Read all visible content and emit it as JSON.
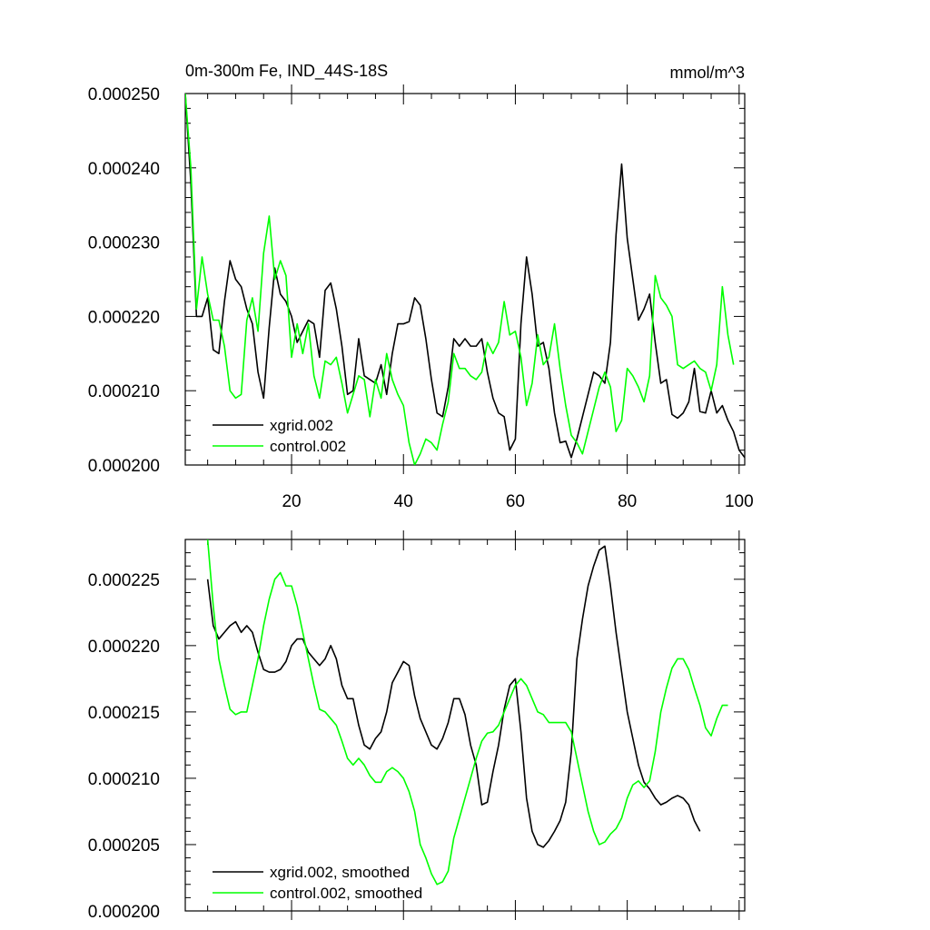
{
  "chart_data": [
    {
      "type": "line",
      "title": "0m-300m Fe, IND_44S-18S",
      "units": "mmol/m^3",
      "xlim": [
        1,
        101
      ],
      "ylim": [
        0.0002,
        0.00025
      ],
      "x_ticks": [
        20,
        40,
        60,
        80,
        100
      ],
      "x_tick_labels": [
        "20",
        "40",
        "60",
        "80",
        "100"
      ],
      "y_ticks": [
        0.0002,
        0.00021,
        0.00022,
        0.00023,
        0.00024,
        0.00025
      ],
      "y_tick_labels": [
        "0.000200",
        "0.000210",
        "0.000220",
        "0.000230",
        "0.000240",
        "0.000250"
      ],
      "legend_position": "bottom-left",
      "series": [
        {
          "name": "xgrid.002",
          "color": "#000000",
          "x_start": 1,
          "values": [
            0.00025,
            0.000238,
            0.00022,
            0.00022,
            0.0002225,
            0.0002155,
            0.000215,
            0.000222,
            0.0002275,
            0.000225,
            0.000224,
            0.000221,
            0.000219,
            0.0002125,
            0.000209,
            0.0002185,
            0.0002265,
            0.000223,
            0.000222,
            0.00022,
            0.0002165,
            0.000218,
            0.0002195,
            0.000219,
            0.0002145,
            0.0002235,
            0.0002245,
            0.000221,
            0.000216,
            0.0002095,
            0.00021,
            0.000217,
            0.000212,
            0.0002115,
            0.000211,
            0.0002135,
            0.0002095,
            0.000215,
            0.000219,
            0.000219,
            0.0002193,
            0.0002225,
            0.0002215,
            0.000217,
            0.0002115,
            0.000207,
            0.0002065,
            0.0002105,
            0.000217,
            0.000216,
            0.000217,
            0.000216,
            0.000216,
            0.000217,
            0.0002125,
            0.000209,
            0.000207,
            0.0002065,
            0.000202,
            0.0002035,
            0.000219,
            0.000228,
            0.000223,
            0.000216,
            0.0002165,
            0.000213,
            0.000207,
            0.000203,
            0.0002032,
            0.000201,
            0.0002035,
            0.0002065,
            0.0002095,
            0.0002125,
            0.000212,
            0.000211,
            0.0002165,
            0.000231,
            0.0002405,
            0.0002305,
            0.000225,
            0.0002195,
            0.000221,
            0.000223,
            0.0002165,
            0.000211,
            0.0002115,
            0.0002068,
            0.0002063,
            0.000207,
            0.0002085,
            0.000213,
            0.0002072,
            0.000207,
            0.00021,
            0.000207,
            0.000208,
            0.000206,
            0.0002045,
            0.000202,
            0.000201
          ]
        },
        {
          "name": "control.002",
          "color": "#00ff00",
          "x_start": 1,
          "values": [
            0.00025,
            0.00024,
            0.000221,
            0.000228,
            0.000223,
            0.0002195,
            0.0002195,
            0.000216,
            0.00021,
            0.000209,
            0.0002095,
            0.0002195,
            0.0002225,
            0.000218,
            0.0002285,
            0.0002335,
            0.000225,
            0.0002275,
            0.0002255,
            0.0002145,
            0.000219,
            0.000215,
            0.000219,
            0.000212,
            0.000209,
            0.000214,
            0.0002135,
            0.0002145,
            0.000211,
            0.000207,
            0.0002095,
            0.000212,
            0.0002115,
            0.0002065,
            0.0002115,
            0.000209,
            0.000215,
            0.0002115,
            0.0002095,
            0.000208,
            0.000203,
            0.0002,
            0.0002015,
            0.0002035,
            0.000203,
            0.000202,
            0.0002055,
            0.0002085,
            0.000215,
            0.000213,
            0.000213,
            0.000212,
            0.0002115,
            0.0002125,
            0.0002165,
            0.000215,
            0.0002165,
            0.000222,
            0.0002175,
            0.000218,
            0.0002145,
            0.000208,
            0.000211,
            0.0002175,
            0.0002135,
            0.0002145,
            0.000219,
            0.000213,
            0.000208,
            0.000204,
            0.000203,
            0.0002015,
            0.0002045,
            0.0002075,
            0.0002105,
            0.0002125,
            0.0002105,
            0.0002045,
            0.000206,
            0.000213,
            0.000212,
            0.0002105,
            0.0002085,
            0.000212,
            0.0002255,
            0.0002225,
            0.0002215,
            0.00022,
            0.0002135,
            0.000213,
            0.0002135,
            0.000214,
            0.000213,
            0.0002125,
            0.00021,
            0.0002135,
            0.000224,
            0.0002175,
            0.0002135
          ]
        }
      ]
    },
    {
      "type": "line",
      "title": "",
      "xlim": [
        1,
        101
      ],
      "ylim": [
        0.0002,
        0.000228
      ],
      "x_ticks": [
        20,
        40,
        60,
        80,
        100
      ],
      "x_tick_labels": [
        "",
        "",
        "",
        "",
        ""
      ],
      "y_ticks": [
        0.0002,
        0.000205,
        0.00021,
        0.000215,
        0.00022,
        0.000225
      ],
      "y_tick_labels": [
        "0.000200",
        "0.000205",
        "0.000210",
        "0.000215",
        "0.000220",
        "0.000225"
      ],
      "legend_position": "bottom-left",
      "series": [
        {
          "name": "xgrid.002, smoothed",
          "color": "#000000",
          "x_start": 5,
          "values": [
            0.000225,
            0.0002215,
            0.0002205,
            0.000221,
            0.0002215,
            0.0002218,
            0.000221,
            0.0002215,
            0.000221,
            0.0002195,
            0.0002182,
            0.000218,
            0.000218,
            0.0002182,
            0.0002188,
            0.00022,
            0.0002205,
            0.0002205,
            0.0002195,
            0.000219,
            0.0002185,
            0.000219,
            0.00022,
            0.000219,
            0.000217,
            0.000216,
            0.000216,
            0.000214,
            0.0002125,
            0.0002122,
            0.000213,
            0.0002135,
            0.000215,
            0.0002172,
            0.000218,
            0.0002188,
            0.0002185,
            0.0002162,
            0.0002145,
            0.0002135,
            0.0002125,
            0.0002122,
            0.000213,
            0.0002142,
            0.000216,
            0.000216,
            0.0002148,
            0.0002125,
            0.000211,
            0.000208,
            0.0002082,
            0.0002105,
            0.0002125,
            0.0002152,
            0.000217,
            0.0002175,
            0.0002135,
            0.0002085,
            0.000206,
            0.000205,
            0.0002048,
            0.0002053,
            0.000206,
            0.0002068,
            0.0002082,
            0.000212,
            0.000219,
            0.000222,
            0.0002245,
            0.000226,
            0.0002272,
            0.0002275,
            0.0002245,
            0.000221,
            0.000218,
            0.000215,
            0.000213,
            0.000211,
            0.0002097,
            0.0002092,
            0.0002085,
            0.000208,
            0.0002082,
            0.0002085,
            0.0002087,
            0.0002085,
            0.000208,
            0.0002068,
            0.000206
          ]
        },
        {
          "name": "control.002, smoothed",
          "color": "#00ff00",
          "x_start": 5,
          "values": [
            0.000228,
            0.000223,
            0.000219,
            0.000217,
            0.0002152,
            0.0002148,
            0.000215,
            0.000215,
            0.000217,
            0.000219,
            0.0002215,
            0.0002235,
            0.000225,
            0.0002255,
            0.0002245,
            0.0002245,
            0.000223,
            0.000221,
            0.000219,
            0.000217,
            0.0002152,
            0.000215,
            0.0002145,
            0.000214,
            0.0002128,
            0.0002115,
            0.000211,
            0.0002115,
            0.000211,
            0.0002102,
            0.0002097,
            0.0002097,
            0.0002105,
            0.0002108,
            0.0002105,
            0.00021,
            0.000209,
            0.0002075,
            0.000205,
            0.000204,
            0.0002028,
            0.000202,
            0.0002022,
            0.000203,
            0.0002055,
            0.000207,
            0.0002085,
            0.00021,
            0.0002115,
            0.0002128,
            0.0002134,
            0.0002135,
            0.000214,
            0.000215,
            0.000216,
            0.000217,
            0.0002175,
            0.000217,
            0.000216,
            0.000215,
            0.0002148,
            0.0002142,
            0.0002142,
            0.0002142,
            0.0002142,
            0.0002135,
            0.0002115,
            0.0002095,
            0.0002075,
            0.000206,
            0.000205,
            0.0002052,
            0.0002058,
            0.0002062,
            0.000207,
            0.0002085,
            0.0002095,
            0.0002098,
            0.0002093,
            0.0002098,
            0.000212,
            0.000215,
            0.0002168,
            0.0002183,
            0.000219,
            0.000219,
            0.0002182,
            0.0002168,
            0.0002155,
            0.0002138,
            0.0002132,
            0.0002145,
            0.0002155,
            0.0002155
          ]
        }
      ]
    }
  ]
}
